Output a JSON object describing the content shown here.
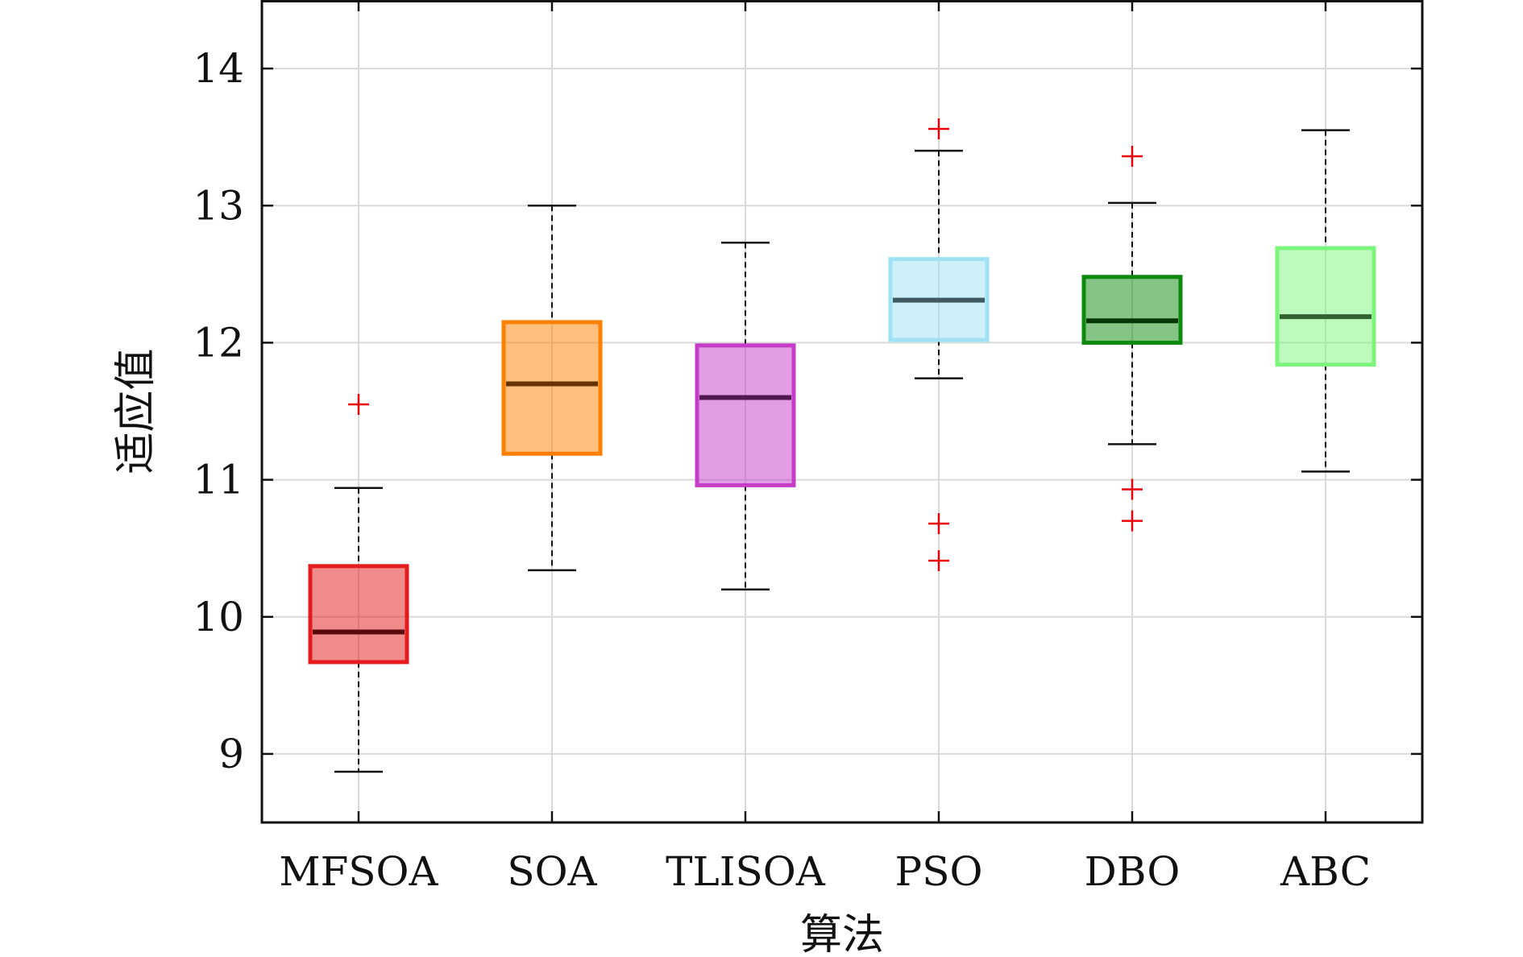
{
  "chart_data": {
    "type": "boxplot",
    "title": "",
    "xlabel": "算法",
    "ylabel": "适应值",
    "ylim": [
      8.5,
      14.5
    ],
    "yticks": [
      9,
      10,
      11,
      12,
      13,
      14
    ],
    "grid": true,
    "categories": [
      "MFSOA",
      "SOA",
      "TLISOA",
      "PSO",
      "DBO",
      "ABC"
    ],
    "boxes": [
      {
        "name": "MFSOA",
        "color": "#e41a1c",
        "whisker_low": 8.87,
        "q1": 9.67,
        "median": 9.89,
        "q3": 10.37,
        "whisker_high": 10.94,
        "outliers": [
          11.55
        ]
      },
      {
        "name": "SOA",
        "color": "#ff7f00",
        "whisker_low": 10.34,
        "q1": 11.19,
        "median": 11.7,
        "q3": 12.15,
        "whisker_high": 13.0,
        "outliers": []
      },
      {
        "name": "TLISOA",
        "color": "#c53cc8",
        "whisker_low": 10.2,
        "q1": 10.96,
        "median": 11.6,
        "q3": 11.98,
        "whisker_high": 12.73,
        "outliers": []
      },
      {
        "name": "PSO",
        "color": "#9fe2f5",
        "whisker_low": 11.74,
        "q1": 12.02,
        "median": 12.31,
        "q3": 12.61,
        "whisker_high": 13.4,
        "outliers": [
          13.56,
          10.68,
          10.41
        ]
      },
      {
        "name": "DBO",
        "color": "#0d8a0d",
        "whisker_low": 11.26,
        "q1": 12.0,
        "median": 12.16,
        "q3": 12.48,
        "whisker_high": 13.02,
        "outliers": [
          13.36,
          10.93,
          10.7
        ]
      },
      {
        "name": "ABC",
        "color": "#7cf57c",
        "whisker_low": 11.06,
        "q1": 11.84,
        "median": 12.19,
        "q3": 12.69,
        "whisker_high": 13.55,
        "outliers": []
      }
    ],
    "outlier_color": "#e8000b"
  }
}
